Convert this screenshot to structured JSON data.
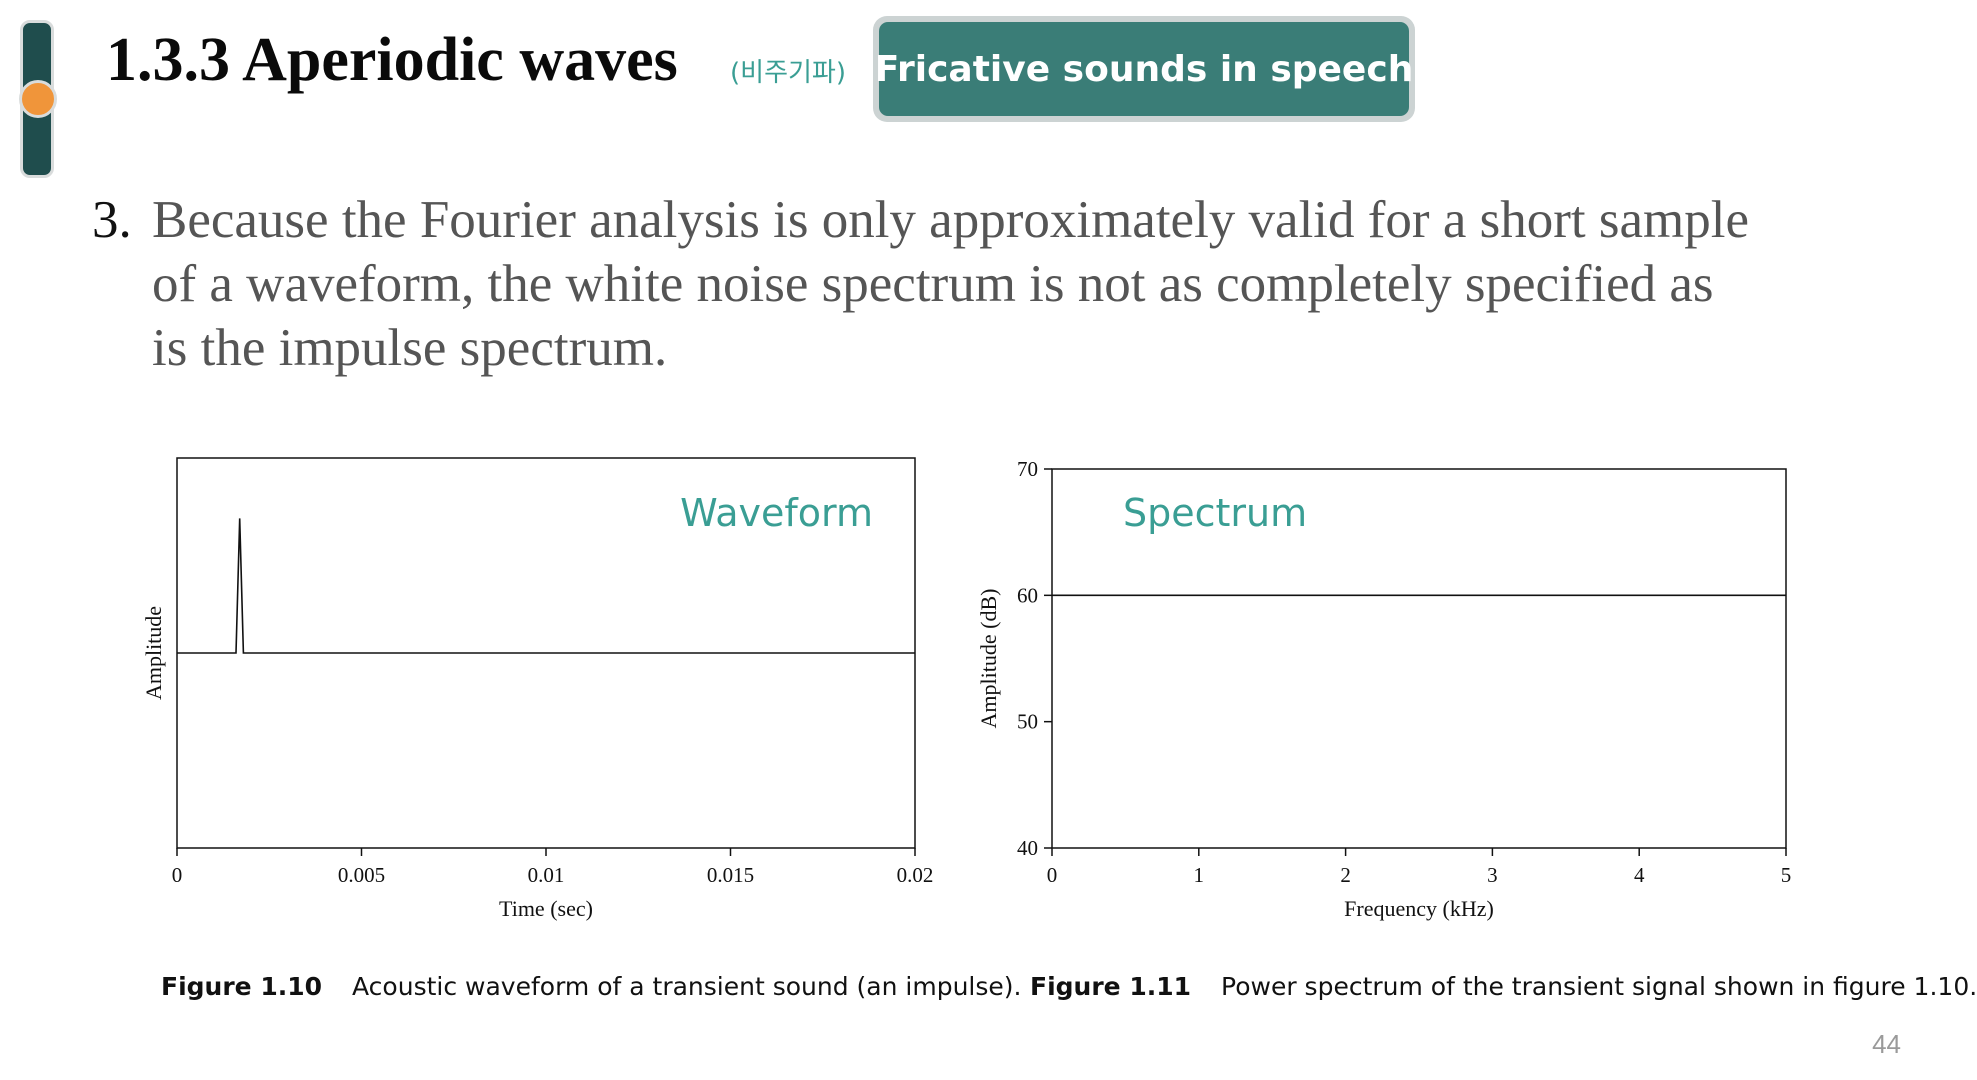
{
  "header": {
    "title": "1.3.3 Aperiodic waves",
    "subtitle_korean": "(비주기파)",
    "topic_badge": "Fricative sounds in speech"
  },
  "body": {
    "point_number": "3.",
    "point_text": "Because the Fourier analysis is only approximately valid for a short sample of a waveform, the white noise spectrum is not as completely specified as is the impulse spectrum."
  },
  "chart_data": [
    {
      "type": "line",
      "annotation": "Waveform",
      "xlabel": "Time (sec)",
      "ylabel": "Amplitude",
      "xlim": [
        0,
        0.02
      ],
      "xticks": [
        0,
        0.005,
        0.01,
        0.015,
        0.02
      ],
      "xtick_labels": [
        "0",
        "0.005",
        "0.01",
        "0.015",
        "0.02"
      ],
      "ylim": [
        -1,
        1
      ],
      "y_tick_labels_shown": false,
      "grid": false,
      "series": [
        {
          "x": [
            0,
            0.0016,
            0.0017,
            0.0018,
            0.02
          ],
          "y": [
            0,
            0,
            0.69,
            0,
            0
          ]
        }
      ],
      "caption_label": "Figure 1.10",
      "caption_text": "Acoustic waveform of a transient sound (an impulse).",
      "colors": {
        "line": "#111111",
        "annotation": "#3a9e94"
      }
    },
    {
      "type": "line",
      "annotation": "Spectrum",
      "xlabel": "Frequency (kHz)",
      "ylabel": "Amplitude (dB)",
      "xlim": [
        0,
        5
      ],
      "xticks": [
        0,
        1,
        2,
        3,
        4,
        5
      ],
      "xtick_labels": [
        "0",
        "1",
        "2",
        "3",
        "4",
        "5"
      ],
      "ylim": [
        40,
        70
      ],
      "yticks": [
        40,
        50,
        60,
        70
      ],
      "ytick_labels": [
        "40",
        "50",
        "60",
        "70"
      ],
      "grid": false,
      "series": [
        {
          "x": [
            0,
            5
          ],
          "y": [
            60,
            60
          ]
        }
      ],
      "caption_label": "Figure 1.11",
      "caption_text": "Power spectrum of the transient signal shown in figure 1.10.",
      "colors": {
        "line": "#111111",
        "annotation": "#3a9e94"
      }
    }
  ],
  "footer": {
    "page_number": "44"
  },
  "colors": {
    "accent_teal": "#3a7d77",
    "side_indicator": "#1f4d4d",
    "side_dot": "#f0953a"
  }
}
